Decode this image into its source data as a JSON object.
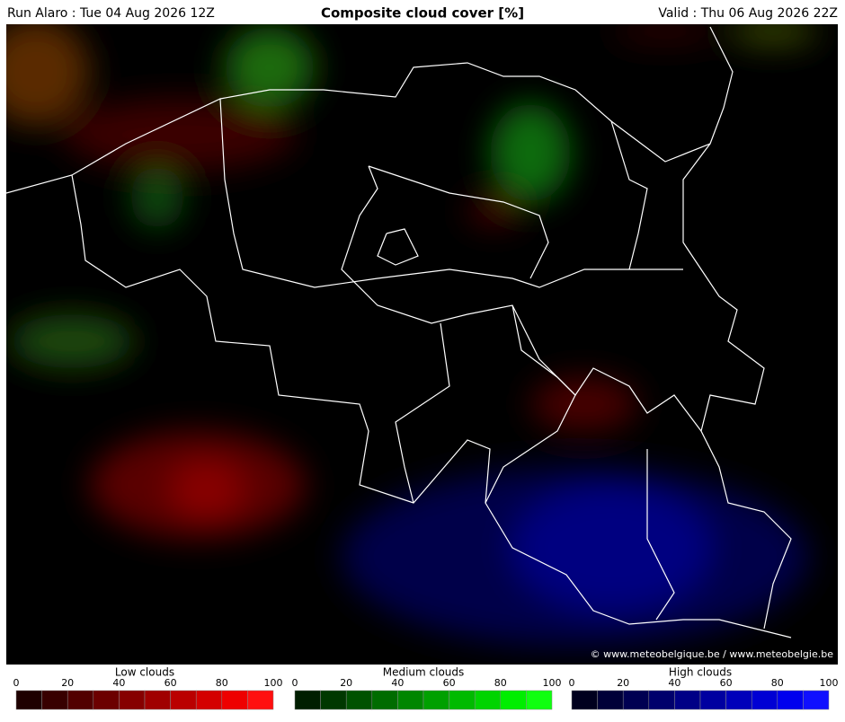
{
  "header": {
    "run": "Run Alaro : Tue 04 Aug 2026 12Z",
    "title": "Composite cloud cover [%]",
    "valid": "Valid : Thu 06 Aug 2026 22Z"
  },
  "map": {
    "credit": "© www.meteobelgique.be / www.meteobelgie.be"
  },
  "legends": [
    {
      "title": "Low clouds",
      "ticks": [
        0,
        20,
        40,
        60,
        80,
        100
      ],
      "colors": [
        "#1e0000",
        "#380000",
        "#520000",
        "#6c0000",
        "#860000",
        "#a00000",
        "#ba0000",
        "#d40000",
        "#ee0000",
        "#ff1010"
      ]
    },
    {
      "title": "Medium clouds",
      "ticks": [
        0,
        20,
        40,
        60,
        80,
        100
      ],
      "colors": [
        "#001e00",
        "#003800",
        "#005200",
        "#006c00",
        "#008600",
        "#00a000",
        "#00ba00",
        "#00d400",
        "#00ee00",
        "#10ff10"
      ]
    },
    {
      "title": "High clouds",
      "ticks": [
        0,
        20,
        40,
        60,
        80,
        100
      ],
      "colors": [
        "#00001e",
        "#000038",
        "#000052",
        "#00006c",
        "#000086",
        "#0000a0",
        "#0000ba",
        "#0000d4",
        "#0000ee",
        "#1010ff"
      ]
    }
  ]
}
